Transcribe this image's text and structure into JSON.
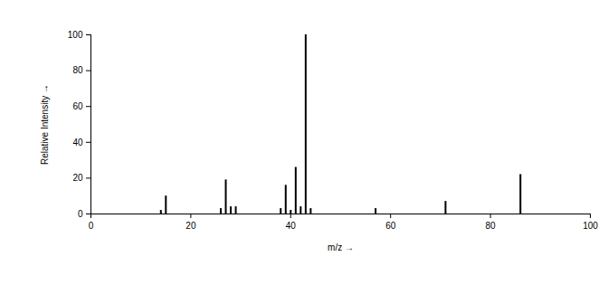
{
  "chart_data": {
    "type": "bar",
    "x_label": "m/z",
    "y_label": "Relative Intensity",
    "x": [
      14,
      15,
      26,
      27,
      28,
      29,
      38,
      39,
      40,
      41,
      42,
      43,
      44,
      57,
      71,
      86
    ],
    "values": [
      2,
      10,
      3,
      19,
      4,
      4,
      3,
      16,
      2,
      26,
      4,
      100,
      3,
      3,
      7,
      22
    ],
    "color": "#000000",
    "xlim": [
      0,
      100
    ],
    "xticks": [
      0,
      20,
      40,
      60,
      80,
      100
    ],
    "ylim": [
      0,
      100
    ],
    "yticks": [
      0,
      20,
      40,
      60,
      80,
      100
    ],
    "grid": false
  }
}
